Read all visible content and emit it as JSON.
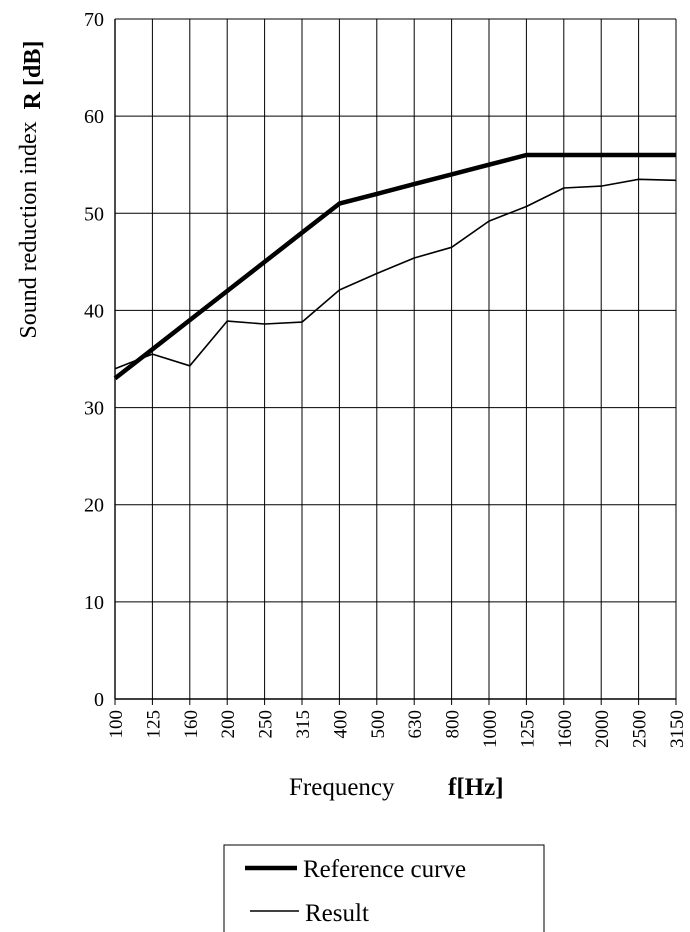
{
  "chart_data": {
    "type": "line",
    "categories": [
      "100",
      "125",
      "160",
      "200",
      "250",
      "315",
      "400",
      "500",
      "630",
      "800",
      "1000",
      "1250",
      "1600",
      "2000",
      "2500",
      "3150"
    ],
    "series": [
      {
        "name": "Reference curve",
        "values": [
          33,
          36,
          39,
          42,
          45,
          48,
          51,
          52,
          53,
          54,
          55,
          56,
          56,
          56,
          56,
          56
        ]
      },
      {
        "name": "Result",
        "values": [
          34,
          35.5,
          34.3,
          38.9,
          38.6,
          38.8,
          42.1,
          43.8,
          45.4,
          46.5,
          49.2,
          50.7,
          52.6,
          52.8,
          53.5,
          53.4
        ]
      }
    ],
    "ylim": [
      0,
      70
    ],
    "yticks": [
      0,
      10,
      20,
      30,
      40,
      50,
      60,
      70
    ],
    "ylabel": "Sound reduction index",
    "ylabel_unit": "R [dB]",
    "xlabel": "Frequency",
    "xlabel_unit": "f[Hz]",
    "grid": true,
    "legend_position": "bottom"
  }
}
